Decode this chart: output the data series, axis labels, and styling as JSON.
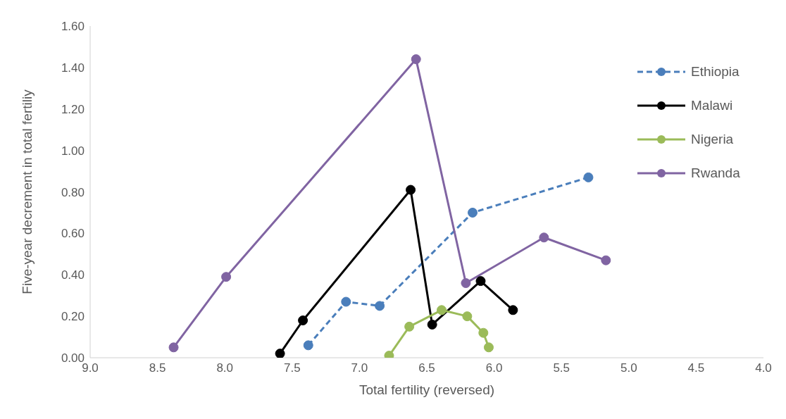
{
  "chart_data": {
    "type": "line",
    "xlabel": "Total fertility (reversed)",
    "ylabel": "Five-year decrement  in total fertiliy",
    "xlim": [
      9,
      4
    ],
    "xticks": [
      {
        "value": 9,
        "label": "9.0"
      },
      {
        "value": 8.5,
        "label": "8.5"
      },
      {
        "value": 8,
        "label": "8.0"
      },
      {
        "value": 7.5,
        "label": "7.5"
      },
      {
        "value": 7,
        "label": "7.0"
      },
      {
        "value": 6.5,
        "label": "6.5"
      },
      {
        "value": 6,
        "label": "6.0"
      },
      {
        "value": 5.5,
        "label": "5.5"
      },
      {
        "value": 5,
        "label": "5.0"
      },
      {
        "value": 4.5,
        "label": "4.5"
      },
      {
        "value": 4,
        "label": "4.0"
      }
    ],
    "ylim": [
      0,
      1.6
    ],
    "yticks": [
      {
        "value": 0,
        "label": "0.00"
      },
      {
        "value": 0.2,
        "label": "0.20"
      },
      {
        "value": 0.4,
        "label": "0.40"
      },
      {
        "value": 0.6,
        "label": "0.60"
      },
      {
        "value": 0.8,
        "label": "0.80"
      },
      {
        "value": 1,
        "label": "1.00"
      },
      {
        "value": 1.2,
        "label": "1.20"
      },
      {
        "value": 1.4,
        "label": "1.40"
      },
      {
        "value": 1.6,
        "label": "1.60"
      }
    ],
    "marker": "circle",
    "legend": "top right",
    "series": [
      {
        "name": "Ethiopia",
        "color": "#4a7ebb",
        "line_style": "dashed",
        "x": [
          7.38,
          7.1,
          6.85,
          6.16,
          5.3
        ],
        "values": [
          0.06,
          0.27,
          0.25,
          0.7,
          0.87
        ]
      },
      {
        "name": "Malawi",
        "color": "#000000",
        "x": [
          7.59,
          7.42,
          6.62,
          6.46,
          6.1,
          5.86
        ],
        "values": [
          0.02,
          0.18,
          0.81,
          0.16,
          0.37,
          0.23
        ]
      },
      {
        "name": "Nigeria",
        "color": "#9bbb59",
        "x": [
          6.78,
          6.63,
          6.39,
          6.2,
          6.08,
          6.04
        ],
        "values": [
          0.01,
          0.15,
          0.23,
          0.2,
          0.12,
          0.05
        ]
      },
      {
        "name": "Rwanda",
        "color": "#8064a2",
        "x": [
          8.38,
          7.99,
          6.58,
          6.21,
          5.63,
          5.17
        ],
        "values": [
          0.05,
          0.39,
          1.44,
          0.36,
          0.58,
          0.47
        ]
      }
    ]
  }
}
